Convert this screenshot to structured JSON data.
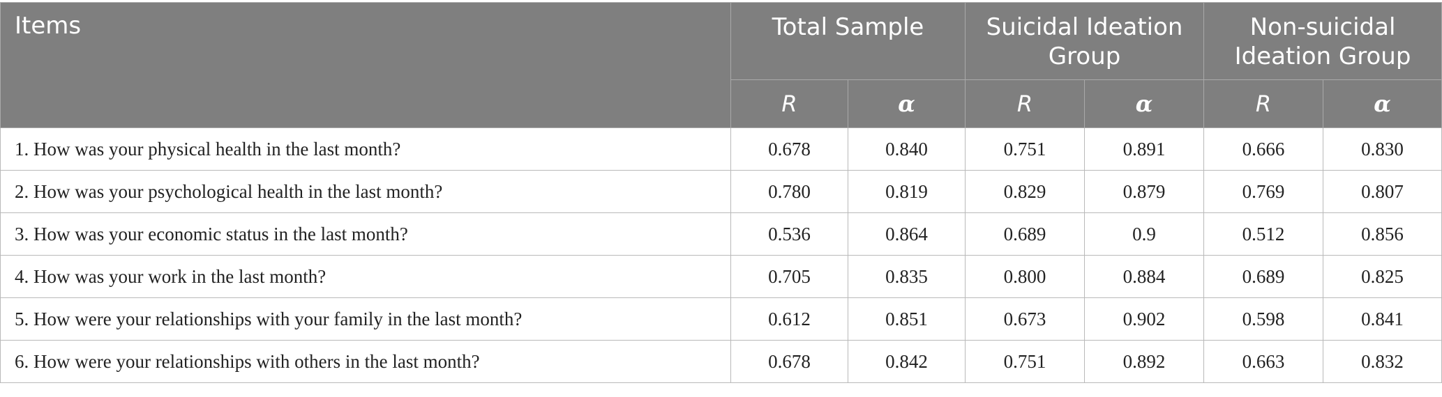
{
  "header": {
    "items": "Items",
    "groups": [
      "Total Sample",
      "Suicidal Ideation Group",
      "Non-suicidal Ideation Group"
    ],
    "r": "R",
    "alpha": "α"
  },
  "rows": [
    {
      "item": "1. How was your physical health in the last month?",
      "values": [
        "0.678",
        "0.840",
        "0.751",
        "0.891",
        "0.666",
        "0.830"
      ]
    },
    {
      "item": "2. How was your psychological health in the last month?",
      "values": [
        "0.780",
        "0.819",
        "0.829",
        "0.879",
        "0.769",
        "0.807"
      ]
    },
    {
      "item": "3. How was your economic status in the last month?",
      "values": [
        "0.536",
        "0.864",
        "0.689",
        "0.9",
        "0.512",
        "0.856"
      ]
    },
    {
      "item": "4. How was your work in the last month?",
      "values": [
        "0.705",
        "0.835",
        "0.800",
        "0.884",
        "0.689",
        "0.825"
      ]
    },
    {
      "item": "5. How were your relationships with your family in the last month?",
      "values": [
        "0.612",
        "0.851",
        "0.673",
        "0.902",
        "0.598",
        "0.841"
      ]
    },
    {
      "item": "6. How were your relationships with others in the last month?",
      "values": [
        "0.678",
        "0.842",
        "0.751",
        "0.892",
        "0.663",
        "0.832"
      ]
    }
  ]
}
